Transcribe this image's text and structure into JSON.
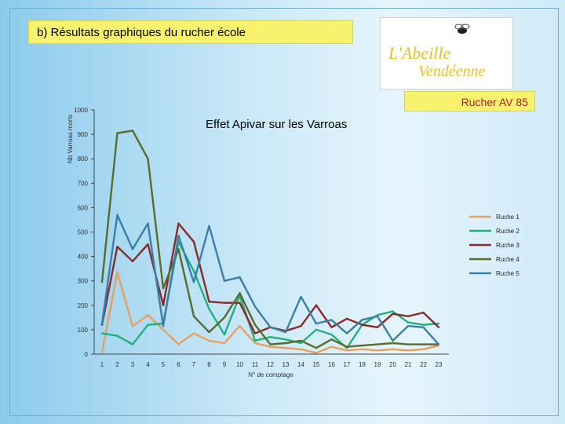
{
  "header": {
    "section_title": "b) Résultats graphiques du rucher école",
    "hive_label": "Rucher AV 85"
  },
  "logo": {
    "name": "abeille-vendeenne-logo",
    "text_line1": "L'Abeille",
    "text_line2": "Vendéenne"
  },
  "colors": {
    "background": "#9fd3ef",
    "title_bar": "#f7f36f",
    "hive_label_text": "#b0202a"
  },
  "chart_data": {
    "type": "line",
    "title": "Effet  Apivar sur les Varroas",
    "xlabel": "N° de comptage",
    "ylabel": "Nb Varroas morts",
    "ylim": [
      0,
      1000
    ],
    "yticks": [
      0,
      100,
      200,
      300,
      400,
      500,
      600,
      700,
      800,
      900,
      1000
    ],
    "categories": [
      "1",
      "2",
      "3",
      "4",
      "5",
      "6",
      "7",
      "8",
      "9",
      "10",
      "11",
      "12",
      "13",
      "14",
      "15",
      "16",
      "17",
      "18",
      "19",
      "20",
      "21",
      "22",
      "23"
    ],
    "legend_position": "right",
    "grid": false,
    "series": [
      {
        "name": "Ruche 1",
        "color": "#e8a060",
        "values": [
          5,
          335,
          115,
          160,
          100,
          40,
          85,
          55,
          45,
          115,
          45,
          30,
          25,
          20,
          5,
          30,
          15,
          20,
          15,
          20,
          15,
          20,
          35
        ]
      },
      {
        "name": "Ruche 2",
        "color": "#22b07a",
        "values": [
          85,
          75,
          40,
          120,
          125,
          460,
          340,
          185,
          80,
          240,
          55,
          70,
          60,
          45,
          100,
          80,
          25,
          120,
          160,
          175,
          130,
          120,
          125
        ]
      },
      {
        "name": "Ruche 3",
        "color": "#8b2a2a",
        "values": [
          120,
          440,
          380,
          450,
          200,
          535,
          460,
          215,
          210,
          210,
          85,
          110,
          95,
          115,
          200,
          110,
          145,
          120,
          110,
          165,
          155,
          170,
          110
        ]
      },
      {
        "name": "Ruche 4",
        "color": "#5a6b2a",
        "values": [
          295,
          905,
          915,
          800,
          270,
          430,
          155,
          90,
          150,
          250,
          120,
          40,
          45,
          55,
          25,
          60,
          30,
          35,
          40,
          45,
          40,
          40,
          40
        ]
      },
      {
        "name": "Ruche 5",
        "color": "#3a7fa5",
        "values": [
          125,
          570,
          430,
          535,
          115,
          485,
          295,
          525,
          300,
          315,
          195,
          110,
          90,
          235,
          125,
          140,
          85,
          140,
          155,
          55,
          115,
          110,
          40
        ]
      }
    ]
  }
}
